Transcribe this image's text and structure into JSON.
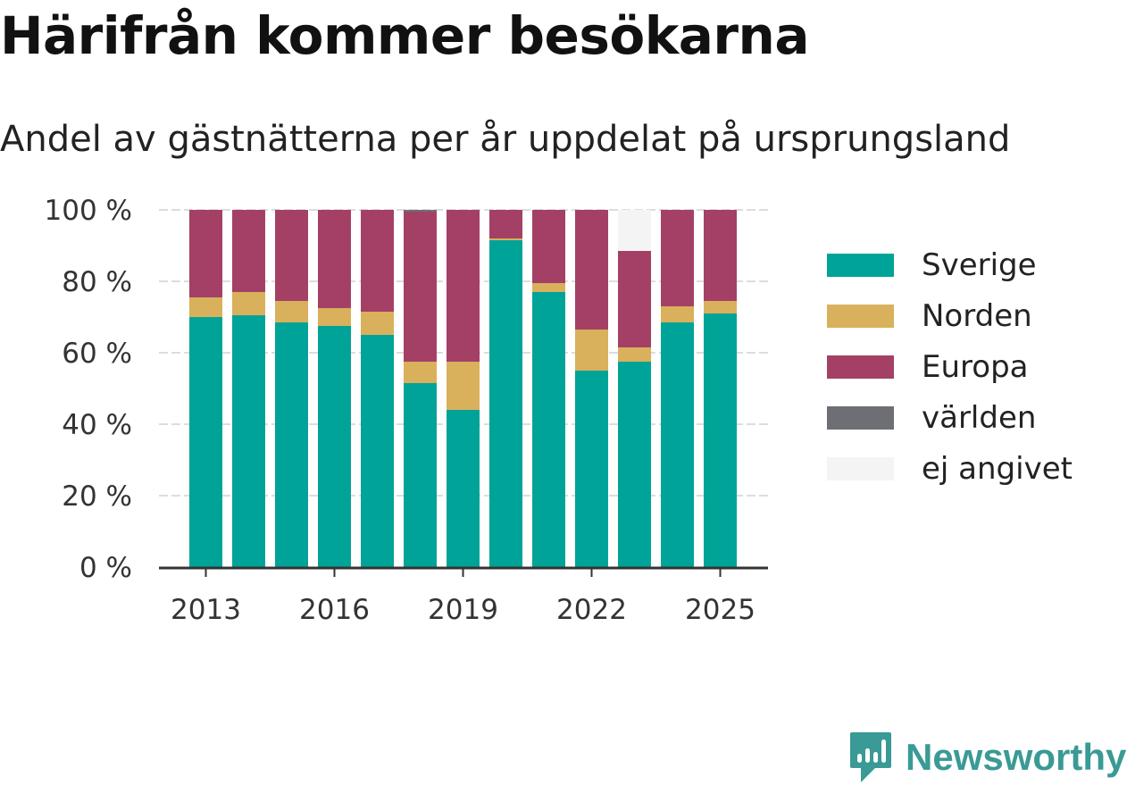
{
  "title": "Härifrån kommer besökarna",
  "subtitle": "Andel av gästnätterna per år uppdelat på ursprungsland",
  "brand": {
    "name": "Newsworthy",
    "icon": "newsworthy-logo-icon",
    "color": "#3a9a95"
  },
  "chart_data": {
    "type": "bar",
    "stacked": true,
    "categories": [
      "2013",
      "2014",
      "2015",
      "2016",
      "2017",
      "2018",
      "2019",
      "2020",
      "2021",
      "2022",
      "2023",
      "2024",
      "2025"
    ],
    "x_tick_labels": [
      "2013",
      "2016",
      "2019",
      "2022",
      "2025"
    ],
    "y_tick_labels": [
      "0 %",
      "20 %",
      "40 %",
      "60 %",
      "80 %",
      "100 %"
    ],
    "ylim": [
      0,
      100
    ],
    "grid": true,
    "legend_position": "right",
    "series": [
      {
        "name": "Sverige",
        "color": "#00a398",
        "values": [
          70,
          70.5,
          68.5,
          67.5,
          65,
          51.5,
          44,
          91.5,
          77,
          55,
          57.5,
          68.5,
          71
        ]
      },
      {
        "name": "Norden",
        "color": "#d9b05b",
        "values": [
          5.5,
          6.5,
          6,
          5,
          6.5,
          6,
          13.5,
          0.5,
          2.5,
          11.5,
          4,
          4.5,
          3.5
        ]
      },
      {
        "name": "Europa",
        "color": "#a44066",
        "values": [
          24.5,
          23,
          25.5,
          27.5,
          28.5,
          42,
          42.5,
          8,
          20.5,
          33.5,
          27,
          27,
          25.5
        ]
      },
      {
        "name": "världen",
        "color": "#6e6e75",
        "values": [
          0,
          0,
          0,
          0,
          0,
          0.5,
          0,
          0,
          0,
          0,
          0,
          0,
          0
        ]
      },
      {
        "name": "ej angivet",
        "color": "#f4f4f4",
        "values": [
          0,
          0,
          0,
          0,
          0,
          0,
          0,
          0,
          0,
          0,
          11.5,
          0,
          0
        ]
      }
    ]
  }
}
